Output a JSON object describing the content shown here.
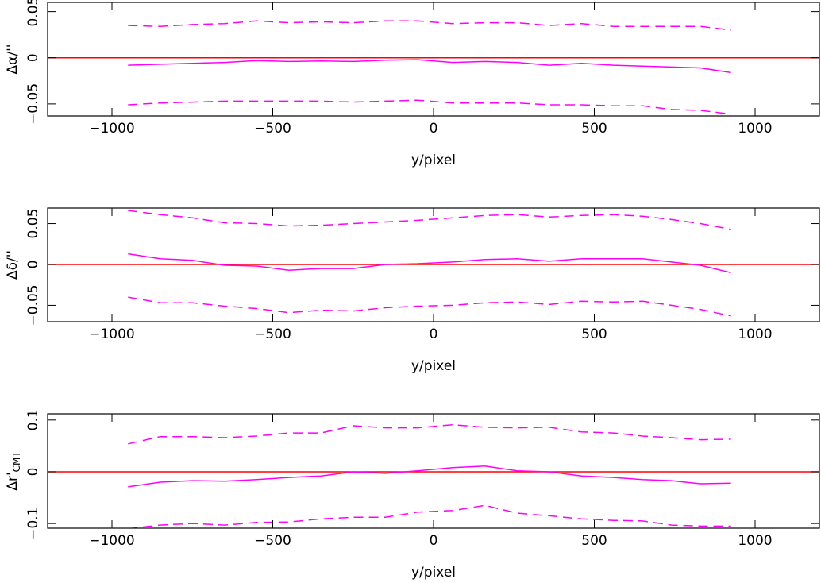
{
  "chart_data": [
    {
      "type": "line",
      "xlabel": "y/pixel",
      "ylabel": "Δα/''",
      "x": [
        -950,
        -850,
        -750,
        -650,
        -550,
        -450,
        -350,
        -250,
        -150,
        -50,
        60,
        160,
        260,
        360,
        460,
        560,
        650,
        740,
        830,
        925
      ],
      "xlim": [
        -1200,
        1200
      ],
      "xticks": [
        {
          "value": -1000,
          "label": "−1000"
        },
        {
          "value": -500,
          "label": "−500"
        },
        0,
        500,
        1000
      ],
      "ylim": [
        -0.063,
        0.06
      ],
      "yticks": [
        {
          "value": -0.05,
          "label": "−0.05"
        },
        0,
        0.05
      ],
      "hline": 0,
      "hline_color": "#ff0000",
      "series": [
        {
          "color": "#ff00ff",
          "dashed": false,
          "values": [
            -0.008,
            -0.007,
            -0.006,
            -0.005,
            -0.003,
            -0.004,
            -0.0035,
            -0.004,
            -0.0025,
            -0.002,
            -0.005,
            -0.004,
            -0.005,
            -0.008,
            -0.006,
            -0.008,
            -0.009,
            -0.01,
            -0.011,
            -0.016
          ]
        },
        {
          "color": "#ff00ff",
          "dashed": true,
          "values": [
            0.035,
            0.034,
            0.036,
            0.037,
            0.04,
            0.038,
            0.039,
            0.038,
            0.04,
            0.04,
            0.037,
            0.038,
            0.038,
            0.035,
            0.037,
            0.034,
            0.034,
            0.034,
            0.034,
            0.03
          ]
        },
        {
          "color": "#ff00ff",
          "dashed": true,
          "values": [
            -0.051,
            -0.049,
            -0.048,
            -0.047,
            -0.047,
            -0.047,
            -0.047,
            -0.048,
            -0.047,
            -0.046,
            -0.049,
            -0.049,
            -0.049,
            -0.051,
            -0.051,
            -0.052,
            -0.052,
            -0.056,
            -0.057,
            -0.061
          ]
        }
      ]
    },
    {
      "type": "line",
      "xlabel": "y/pixel",
      "ylabel": "Δδ/''",
      "x": [
        -950,
        -850,
        -750,
        -650,
        -550,
        -450,
        -350,
        -250,
        -150,
        -50,
        60,
        160,
        260,
        360,
        460,
        560,
        650,
        740,
        830,
        925
      ],
      "xlim": [
        -1200,
        1200
      ],
      "xticks": [
        {
          "value": -1000,
          "label": "−1000"
        },
        {
          "value": -500,
          "label": "−500"
        },
        0,
        500,
        1000
      ],
      "ylim": [
        -0.07,
        0.069
      ],
      "yticks": [
        {
          "value": -0.05,
          "label": "−0.05"
        },
        0,
        0.05
      ],
      "hline": 0,
      "hline_color": "#ff0000",
      "series": [
        {
          "color": "#ff00ff",
          "dashed": false,
          "values": [
            0.013,
            0.007,
            0.005,
            -0.001,
            -0.002,
            -0.007,
            -0.005,
            -0.005,
            0,
            0.001,
            0.003,
            0.006,
            0.007,
            0.004,
            0.007,
            0.007,
            0.007,
            0.003,
            -0.001,
            -0.01
          ]
        },
        {
          "color": "#ff00ff",
          "dashed": true,
          "values": [
            0.066,
            0.061,
            0.057,
            0.051,
            0.05,
            0.047,
            0.048,
            0.05,
            0.052,
            0.054,
            0.057,
            0.06,
            0.061,
            0.058,
            0.06,
            0.061,
            0.059,
            0.055,
            0.05,
            0.043
          ]
        },
        {
          "color": "#ff00ff",
          "dashed": true,
          "values": [
            -0.04,
            -0.047,
            -0.047,
            -0.051,
            -0.054,
            -0.059,
            -0.056,
            -0.057,
            -0.053,
            -0.051,
            -0.05,
            -0.047,
            -0.046,
            -0.049,
            -0.045,
            -0.046,
            -0.045,
            -0.05,
            -0.055,
            -0.063
          ]
        }
      ]
    },
    {
      "type": "line",
      "xlabel": "y/pixel",
      "ylabel": "Δr'",
      "ylabel_sub": "CMT",
      "x": [
        -950,
        -850,
        -750,
        -650,
        -550,
        -450,
        -350,
        -250,
        -150,
        -50,
        60,
        160,
        260,
        360,
        460,
        560,
        650,
        740,
        830,
        925
      ],
      "xlim": [
        -1200,
        1200
      ],
      "xticks": [
        {
          "value": -1000,
          "label": "−1000"
        },
        {
          "value": -500,
          "label": "−500"
        },
        0,
        500,
        1000
      ],
      "ylim": [
        -0.109,
        0.112
      ],
      "yticks": [
        {
          "value": -0.1,
          "label": "−0.1"
        },
        0,
        0.1
      ],
      "hline": 0,
      "hline_color": "#ff0000",
      "series": [
        {
          "color": "#ff00ff",
          "dashed": false,
          "values": [
            -0.029,
            -0.02,
            -0.017,
            -0.018,
            -0.015,
            -0.011,
            -0.008,
            0,
            -0.003,
            0.002,
            0.008,
            0.011,
            0.002,
            0,
            -0.008,
            -0.011,
            -0.015,
            -0.017,
            -0.023,
            -0.022
          ]
        },
        {
          "color": "#ff00ff",
          "dashed": true,
          "values": [
            0.054,
            0.068,
            0.068,
            0.066,
            0.069,
            0.075,
            0.075,
            0.089,
            0.085,
            0.085,
            0.091,
            0.086,
            0.085,
            0.086,
            0.077,
            0.075,
            0.069,
            0.066,
            0.062,
            0.063
          ]
        },
        {
          "color": "#ff00ff",
          "dashed": true,
          "values": [
            -0.11,
            -0.103,
            -0.1,
            -0.103,
            -0.098,
            -0.097,
            -0.091,
            -0.088,
            -0.088,
            -0.078,
            -0.075,
            -0.065,
            -0.08,
            -0.085,
            -0.091,
            -0.094,
            -0.095,
            -0.103,
            -0.105,
            -0.105
          ]
        }
      ]
    }
  ]
}
